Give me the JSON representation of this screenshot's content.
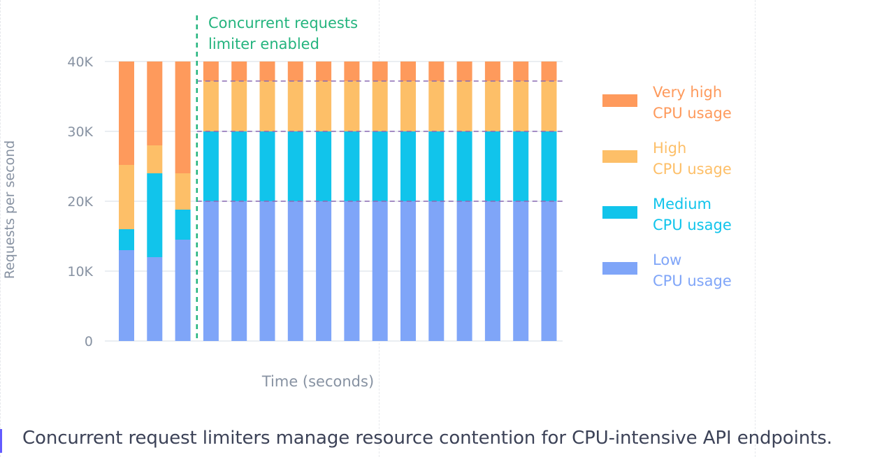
{
  "caption": "Concurrent request limiters manage resource contention for CPU-intensive API endpoints.",
  "chart_data": {
    "type": "bar",
    "stacked": true,
    "categories": [
      "",
      "",
      "",
      "",
      "",
      "",
      "",
      "",
      "",
      "",
      "",
      "",
      "",
      "",
      "",
      ""
    ],
    "series": [
      {
        "name": "Low CPU usage",
        "name_lines": [
          "Low",
          "CPU usage"
        ],
        "color": "#7fa5f8",
        "values": [
          13000,
          12000,
          14500,
          20000,
          20000,
          20000,
          20000,
          20000,
          20000,
          20000,
          20000,
          20000,
          20000,
          20000,
          20000,
          20000
        ]
      },
      {
        "name": "Medium CPU usage",
        "name_lines": [
          "Medium",
          "CPU usage"
        ],
        "color": "#11c4eb",
        "values": [
          3000,
          12000,
          4300,
          10000,
          10000,
          10000,
          10000,
          10000,
          10000,
          10000,
          10000,
          10000,
          10000,
          10000,
          10000,
          10000
        ]
      },
      {
        "name": "High CPU usage",
        "name_lines": [
          "High",
          "CPU usage"
        ],
        "color": "#fdbf68",
        "values": [
          9200,
          4000,
          5200,
          7200,
          7200,
          7200,
          7200,
          7200,
          7200,
          7200,
          7200,
          7200,
          7200,
          7200,
          7200,
          7200
        ]
      },
      {
        "name": "Very high CPU usage",
        "name_lines": [
          "Very high",
          "CPU usage"
        ],
        "color": "#fe9a5c",
        "values": [
          14800,
          12000,
          16000,
          2800,
          2800,
          2800,
          2800,
          2800,
          2800,
          2800,
          2800,
          2800,
          2800,
          2800,
          2800,
          2800
        ]
      }
    ],
    "ylim": [
      0,
      40000
    ],
    "yticks": [
      0,
      10000,
      20000,
      30000,
      40000
    ],
    "ytick_labels": [
      "0",
      "10K",
      "20K",
      "30K",
      "40K"
    ],
    "xlabel": "Time (seconds)",
    "ylabel": "Requests per second",
    "grid": true,
    "legend_position": "right",
    "annotation": {
      "after_index": 2,
      "lines": [
        "Concurrent requests",
        "limiter enabled"
      ],
      "color": "#24b47e"
    },
    "threshold_lines": [
      37200,
      30000,
      20000
    ],
    "threshold_color": "#8a6ab4"
  }
}
